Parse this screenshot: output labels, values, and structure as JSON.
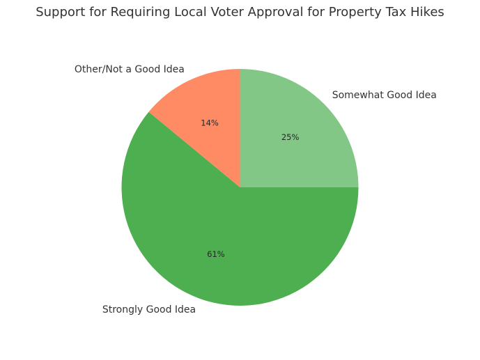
{
  "chart_data": {
    "type": "pie",
    "title": "Support for Requiring Local Voter Approval for Property Tax Hikes",
    "slices": [
      {
        "label": "Somewhat Good Idea",
        "value": 25,
        "percent_label": "25%",
        "color": "#82c785"
      },
      {
        "label": "Strongly Good Idea",
        "value": 61,
        "percent_label": "61%",
        "color": "#4daf50"
      },
      {
        "label": "Other/Not a Good Idea",
        "value": 14,
        "percent_label": "14%",
        "color": "#ff8b65"
      }
    ],
    "start_angle_deg": 90,
    "direction": "clockwise"
  }
}
